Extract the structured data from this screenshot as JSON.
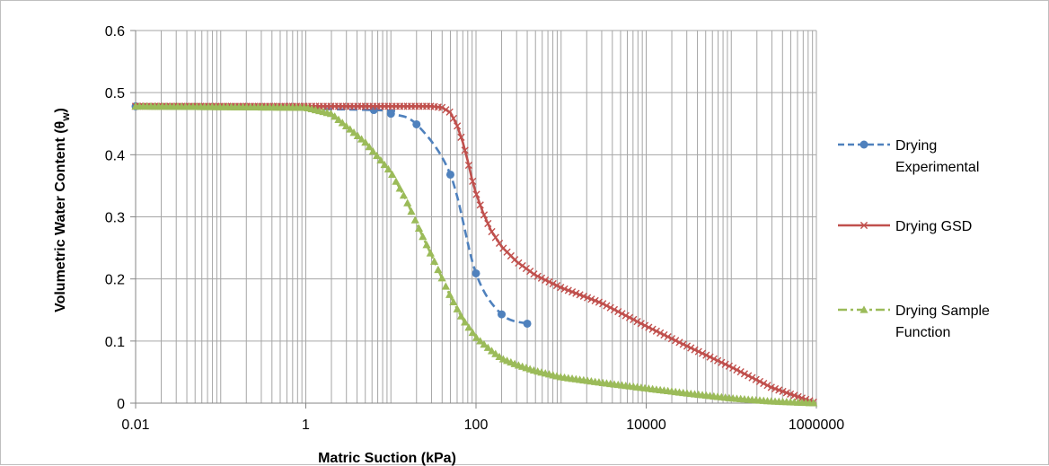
{
  "chart_data": {
    "type": "line",
    "xlabel": "Matric Suction (kPa)",
    "ylabel": "Volumetric Water Content (θw)",
    "ylabel_main": "Volumetric Water Content (θ",
    "ylabel_sub": "w",
    "ylabel_close": ")",
    "x_scale": "log",
    "xlim": [
      0.01,
      1000000
    ],
    "ylim": [
      0,
      0.6
    ],
    "x_ticks": [
      0.01,
      1,
      100,
      10000,
      1000000
    ],
    "x_tick_labels": [
      "0.01",
      "1",
      "100",
      "10000",
      "1000000"
    ],
    "y_ticks": [
      0,
      0.1,
      0.2,
      0.3,
      0.4,
      0.5,
      0.6
    ],
    "y_tick_labels": [
      "0",
      "0.1",
      "0.2",
      "0.3",
      "0.4",
      "0.5",
      "0.6"
    ],
    "grid": true,
    "legend_position": "right",
    "series": [
      {
        "name": "Drying Experimental",
        "legend_lines": [
          "Drying",
          "Experimental"
        ],
        "color": "#4f81bd",
        "dash": "dashed",
        "marker": "circle",
        "x": [
          0.01,
          6.3,
          10,
          20,
          50,
          100,
          200,
          400
        ],
        "y": [
          0.478,
          0.472,
          0.466,
          0.449,
          0.368,
          0.209,
          0.143,
          0.128
        ]
      },
      {
        "name": "Drying GSD",
        "legend_lines": [
          "Drying GSD"
        ],
        "color": "#c0504d",
        "dash": "solid",
        "marker": "cross",
        "points": [
          [
            0.01,
            0.478
          ],
          [
            30,
            0.478
          ],
          [
            40,
            0.476
          ],
          [
            50,
            0.468
          ],
          [
            60,
            0.447
          ],
          [
            70,
            0.42
          ],
          [
            80,
            0.39
          ],
          [
            90,
            0.36
          ],
          [
            100,
            0.338
          ],
          [
            120,
            0.308
          ],
          [
            150,
            0.278
          ],
          [
            200,
            0.252
          ],
          [
            300,
            0.228
          ],
          [
            500,
            0.206
          ],
          [
            1000,
            0.186
          ],
          [
            3000,
            0.161
          ],
          [
            10000,
            0.124
          ],
          [
            30000,
            0.092
          ],
          [
            100000,
            0.058
          ],
          [
            300000,
            0.025
          ],
          [
            1000000,
            0.0
          ]
        ],
        "marker_spacing_decades": 0.045
      },
      {
        "name": "Drying Sample Function",
        "legend_lines": [
          "Drying Sample",
          "Function"
        ],
        "color": "#9bbb59",
        "dash": "dashdot",
        "marker": "triangle",
        "points": [
          [
            0.01,
            0.478
          ],
          [
            1,
            0.476
          ],
          [
            2,
            0.466
          ],
          [
            3,
            0.446
          ],
          [
            5,
            0.42
          ],
          [
            10,
            0.372
          ],
          [
            15,
            0.328
          ],
          [
            20,
            0.29
          ],
          [
            30,
            0.238
          ],
          [
            50,
            0.172
          ],
          [
            70,
            0.135
          ],
          [
            100,
            0.106
          ],
          [
            150,
            0.085
          ],
          [
            200,
            0.072
          ],
          [
            300,
            0.062
          ],
          [
            500,
            0.052
          ],
          [
            1000,
            0.042
          ],
          [
            3000,
            0.033
          ],
          [
            10000,
            0.024
          ],
          [
            30000,
            0.016
          ],
          [
            100000,
            0.008
          ],
          [
            300000,
            0.003
          ],
          [
            1000000,
            0.0
          ]
        ],
        "marker_spacing_decades": 0.045
      }
    ]
  }
}
